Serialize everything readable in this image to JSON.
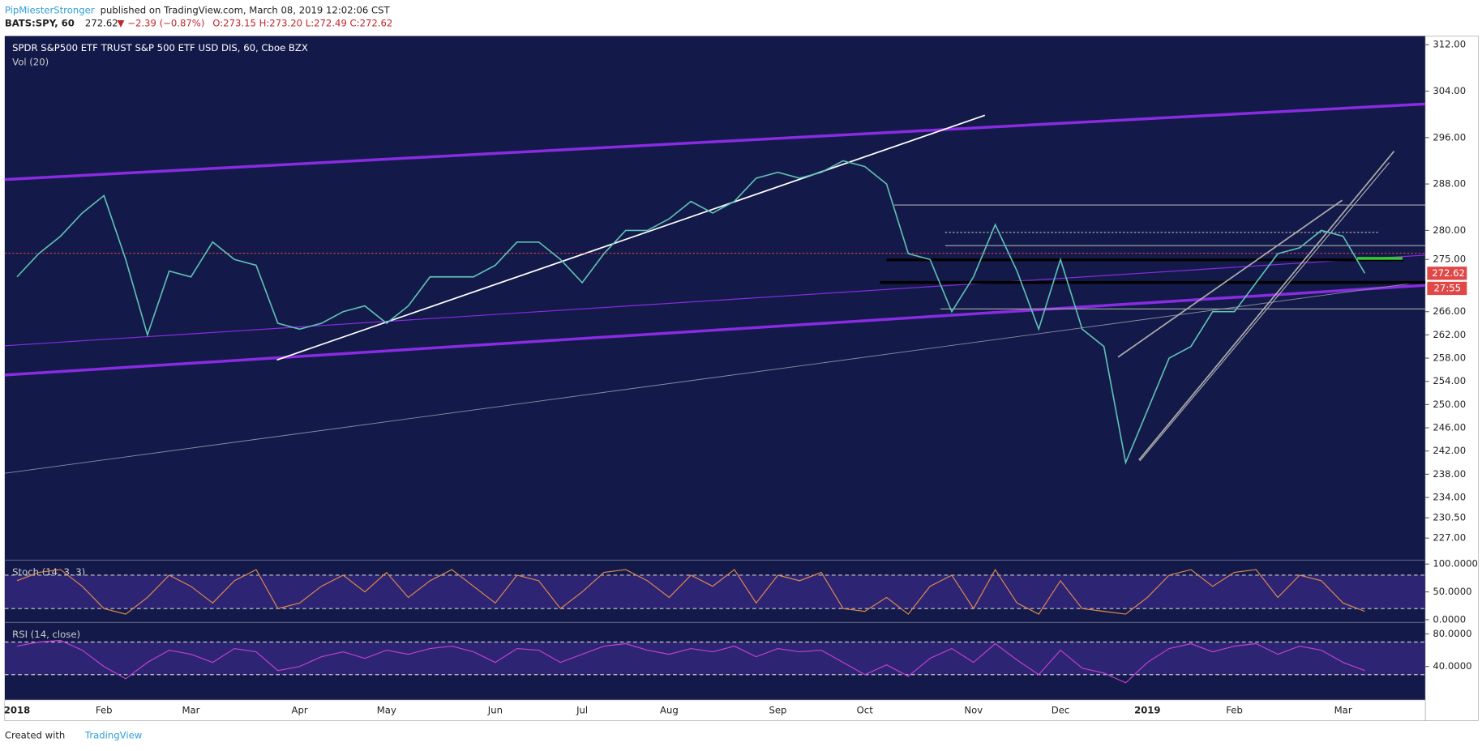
{
  "header": {
    "author": "PipMiesterStronger",
    "published": "published on TradingView.com, March 08, 2019 12:02:06 CST",
    "symbol": "BATS:SPY, 60",
    "last": "272.62",
    "change": "▼ −2.39 (−0.87%)",
    "ohlc": "O:273.15 H:273.20 L:272.49 C:272.62"
  },
  "footer": {
    "created": "Created with",
    "brand": "TradingView"
  },
  "chart_data": [
    {
      "type": "line",
      "title": "SPDR S&P500 ETF TRUST S&P 500 ETF USD DIS, 60, Cboe BZX",
      "subtitle": "Vol (20)",
      "color": "#5fc0b4",
      "categories": [
        "2018",
        null,
        null,
        null,
        "Feb",
        null,
        null,
        null,
        "Mar",
        null,
        null,
        null,
        null,
        "Apr",
        null,
        null,
        null,
        "May",
        null,
        null,
        null,
        null,
        "Jun",
        null,
        null,
        null,
        "Jul",
        null,
        null,
        null,
        "Aug",
        null,
        null,
        null,
        null,
        "Sep",
        null,
        null,
        null,
        "Oct",
        null,
        null,
        null,
        null,
        "Nov",
        null,
        null,
        null,
        "Dec",
        null,
        null,
        null,
        "2019",
        null,
        null,
        null,
        "Feb",
        null,
        null,
        null,
        null,
        "Mar",
        null
      ],
      "values": [
        272,
        276,
        279,
        283,
        286,
        275,
        262,
        273,
        272,
        278,
        275,
        274,
        264,
        263,
        264,
        266,
        267,
        264,
        267,
        272,
        272,
        272,
        274,
        278,
        278,
        275,
        271,
        276,
        280,
        280,
        282,
        285,
        283,
        285,
        289,
        290,
        289,
        290,
        292,
        291,
        288,
        276,
        275,
        266,
        272,
        281,
        273,
        263,
        275,
        263,
        260,
        240,
        249,
        258,
        260,
        266,
        266,
        271,
        276,
        277,
        280,
        279,
        272.62
      ],
      "price_label": "272.62",
      "countdown": "27:55",
      "ylim": [
        223.2,
        313.5
      ],
      "yticks": [
        {
          "value": 312,
          "label": "312.00"
        },
        {
          "value": 304,
          "label": "304.00"
        },
        {
          "value": 296,
          "label": "296.00"
        },
        {
          "value": 288,
          "label": "288.00"
        },
        {
          "value": 280,
          "label": "280.00"
        },
        {
          "value": 275,
          "label": "275.00"
        },
        {
          "value": 266,
          "label": "266.00"
        },
        {
          "value": 262,
          "label": "262.00"
        },
        {
          "value": 258,
          "label": "258.00"
        },
        {
          "value": 254,
          "label": "254.00"
        },
        {
          "value": 250,
          "label": "250.00"
        },
        {
          "value": 246,
          "label": "246.00"
        },
        {
          "value": 242,
          "label": "242.00"
        },
        {
          "value": 238,
          "label": "238.00"
        },
        {
          "value": 234,
          "label": "234.00"
        },
        {
          "value": 230.5,
          "label": "230.50"
        },
        {
          "value": 227,
          "label": "227.00"
        }
      ]
    },
    {
      "type": "line",
      "title": "Stoch (14, 3, 3)",
      "color": "#e08a4a",
      "bands": [
        20,
        80
      ],
      "values": [
        70,
        85,
        90,
        60,
        20,
        10,
        40,
        80,
        60,
        30,
        70,
        90,
        20,
        30,
        60,
        80,
        50,
        85,
        40,
        70,
        90,
        60,
        30,
        80,
        70,
        20,
        50,
        85,
        90,
        70,
        40,
        80,
        60,
        90,
        30,
        80,
        70,
        85,
        20,
        15,
        40,
        10,
        60,
        80,
        20,
        90,
        30,
        10,
        70,
        20,
        15,
        10,
        40,
        80,
        90,
        60,
        85,
        90,
        40,
        80,
        70,
        30,
        15
      ],
      "ylim": [
        -5,
        107
      ],
      "yticks": [
        {
          "value": 100,
          "label": "100.0000"
        },
        {
          "value": 50,
          "label": "50.0000"
        },
        {
          "value": 0,
          "label": "0.0000"
        }
      ]
    },
    {
      "type": "line",
      "title": "RSI (14, close)",
      "color": "#c040d0",
      "bands": [
        30,
        70
      ],
      "values": [
        65,
        70,
        72,
        60,
        40,
        25,
        45,
        60,
        55,
        45,
        62,
        58,
        35,
        40,
        52,
        58,
        50,
        60,
        55,
        62,
        65,
        58,
        45,
        62,
        60,
        45,
        55,
        65,
        68,
        60,
        55,
        62,
        58,
        65,
        52,
        62,
        58,
        60,
        45,
        30,
        42,
        28,
        50,
        62,
        45,
        68,
        48,
        30,
        60,
        38,
        32,
        20,
        45,
        62,
        68,
        58,
        65,
        68,
        55,
        65,
        60,
        45,
        35
      ],
      "ylim": [
        -1,
        94
      ],
      "yticks": [
        {
          "value": 80,
          "label": "80.0000"
        },
        {
          "value": 40,
          "label": "40.0000"
        }
      ]
    }
  ]
}
